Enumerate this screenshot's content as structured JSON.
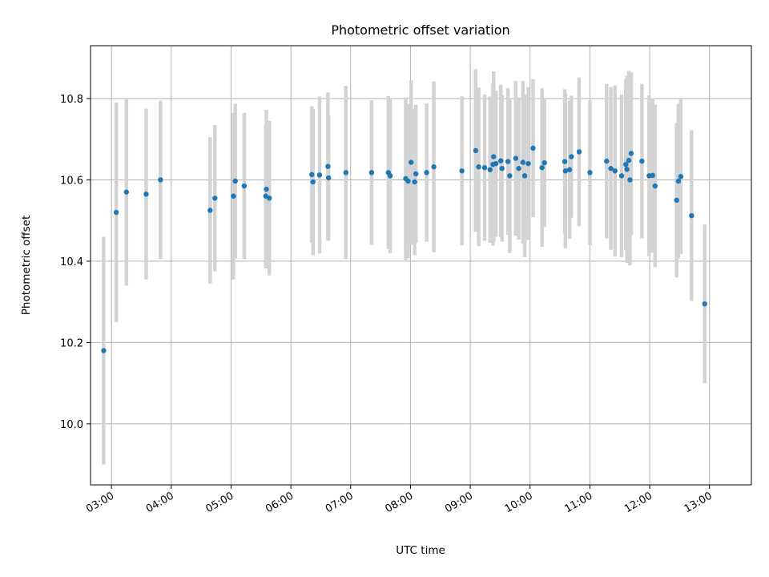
{
  "chart_data": {
    "type": "scatter",
    "title": "Photometric offset variation",
    "xlabel": "UTC time",
    "ylabel": "Photometric offset",
    "xlim": [
      2.65,
      13.7
    ],
    "ylim": [
      9.85,
      10.93
    ],
    "grid": true,
    "xticks": [
      3,
      4,
      5,
      6,
      7,
      8,
      9,
      10,
      11,
      12,
      13
    ],
    "xtick_labels": [
      "03:00",
      "04:00",
      "05:00",
      "06:00",
      "07:00",
      "08:00",
      "09:00",
      "10:00",
      "11:00",
      "12:00",
      "13:00"
    ],
    "yticks": [
      10.0,
      10.2,
      10.4,
      10.6,
      10.8
    ],
    "ytick_labels": [
      "10.0",
      "10.2",
      "10.4",
      "10.6",
      "10.8"
    ],
    "point_color": "#1f77b4",
    "errorbar_color": "#d3d3d3",
    "series": [
      {
        "name": "Photometric offset",
        "x": [
          2.87,
          3.08,
          3.25,
          3.58,
          3.82,
          4.65,
          4.73,
          5.04,
          5.07,
          5.22,
          5.58,
          5.59,
          5.64,
          6.35,
          6.37,
          6.48,
          6.62,
          6.63,
          6.92,
          7.35,
          7.63,
          7.66,
          7.92,
          7.96,
          8.01,
          8.07,
          8.09,
          8.27,
          8.39,
          8.86,
          9.09,
          9.14,
          9.24,
          9.33,
          9.38,
          9.39,
          9.43,
          9.51,
          9.53,
          9.63,
          9.66,
          9.76,
          9.81,
          9.88,
          9.91,
          9.97,
          10.05,
          10.2,
          10.24,
          10.58,
          10.59,
          10.66,
          10.69,
          10.82,
          11.0,
          11.28,
          11.35,
          11.42,
          11.53,
          11.6,
          11.62,
          11.65,
          11.67,
          11.69,
          11.87,
          11.99,
          12.05,
          12.09,
          12.45,
          12.48,
          12.52,
          12.7,
          12.92
        ],
        "y": [
          10.18,
          10.52,
          10.57,
          10.565,
          10.6,
          10.525,
          10.555,
          10.56,
          10.597,
          10.585,
          10.56,
          10.577,
          10.555,
          10.613,
          10.595,
          10.612,
          10.633,
          10.605,
          10.618,
          10.618,
          10.618,
          10.61,
          10.603,
          10.597,
          10.643,
          10.595,
          10.615,
          10.618,
          10.632,
          10.622,
          10.672,
          10.632,
          10.63,
          10.625,
          10.638,
          10.657,
          10.64,
          10.647,
          10.628,
          10.645,
          10.61,
          10.653,
          10.628,
          10.643,
          10.61,
          10.64,
          10.678,
          10.63,
          10.642,
          10.645,
          10.622,
          10.625,
          10.657,
          10.669,
          10.618,
          10.646,
          10.628,
          10.622,
          10.61,
          10.638,
          10.626,
          10.648,
          10.6,
          10.665,
          10.646,
          10.61,
          10.611,
          10.585,
          10.55,
          10.597,
          10.608,
          10.512,
          10.295
        ],
        "yerr": [
          0.28,
          0.27,
          0.23,
          0.21,
          0.195,
          0.18,
          0.18,
          0.205,
          0.19,
          0.18,
          0.175,
          0.195,
          0.19,
          0.168,
          0.18,
          0.193,
          0.182,
          0.155,
          0.213,
          0.178,
          0.188,
          0.19,
          0.2,
          0.19,
          0.202,
          0.18,
          0.17,
          0.17,
          0.21,
          0.183,
          0.2,
          0.195,
          0.18,
          0.18,
          0.2,
          0.21,
          0.18,
          0.187,
          0.18,
          0.18,
          0.19,
          0.19,
          0.175,
          0.2,
          0.2,
          0.188,
          0.17,
          0.195,
          0.158,
          0.178,
          0.19,
          0.17,
          0.15,
          0.183,
          0.178,
          0.19,
          0.2,
          0.21,
          0.2,
          0.21,
          0.23,
          0.22,
          0.21,
          0.2,
          0.19,
          0.198,
          0.19,
          0.2,
          0.19,
          0.19,
          0.19,
          0.21,
          0.195
        ]
      }
    ]
  }
}
